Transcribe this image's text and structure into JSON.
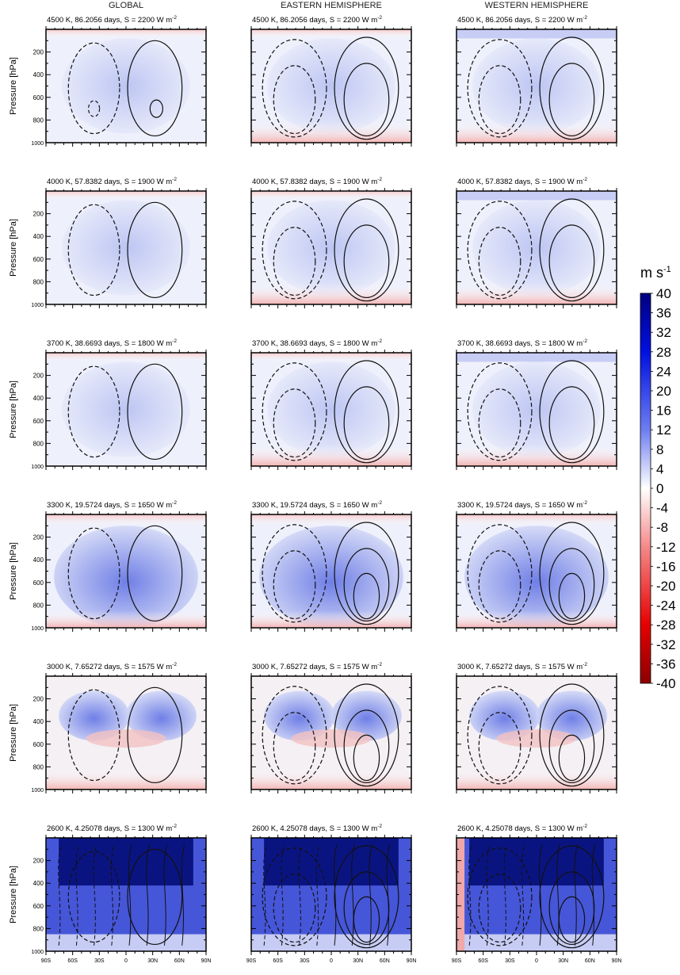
{
  "columns": [
    "GLOBAL",
    "EASTERN HEMISPHERE",
    "WESTERN HEMISPHERE"
  ],
  "ylabel": "Pressure [hPa]",
  "colorbar": {
    "unit": "m s",
    "unit_exp": "-1",
    "labels": [
      "40",
      "36",
      "32",
      "28",
      "24",
      "20",
      "16",
      "12",
      "8",
      "4",
      "0",
      "-4",
      "-8",
      "-12",
      "-16",
      "-20",
      "-24",
      "-28",
      "-32",
      "-36",
      "-40"
    ]
  },
  "y_ticks_first": [
    "200",
    "400",
    "600",
    "800",
    "1000"
  ],
  "y_ticks": [
    "200",
    "400",
    "600",
    "800",
    "1000"
  ],
  "x_ticks": [
    "90S",
    "60S",
    "30S",
    "0",
    "30N",
    "60N",
    "90N"
  ],
  "rows": [
    {
      "title": "4500 K, 86.2056 days, S = 2200 W m",
      "exp": "-2"
    },
    {
      "title": "4000 K, 57.8382 days, S = 1900 W m",
      "exp": "-2"
    },
    {
      "title": "3700 K, 38.6693 days, S = 1800 W m",
      "exp": "-2"
    },
    {
      "title": "3300 K, 19.5724 days, S = 1650 W m",
      "exp": "-2"
    },
    {
      "title": "3000 K, 7.65272 days, S = 1575 W m",
      "exp": "-2"
    },
    {
      "title": "2600 K, 4.25078 days, S = 1300 W m",
      "exp": "-2"
    }
  ],
  "chart_data": {
    "type": "heatmap",
    "description_units": "zonal-mean zonal wind (m s-1) shading with streamfunction contours",
    "x_axis": {
      "label": "",
      "ticks": [
        "90S",
        "60S",
        "30S",
        "0",
        "30N",
        "60N",
        "90N"
      ],
      "range": [
        -90,
        90
      ]
    },
    "y_axis": {
      "label": "Pressure [hPa]",
      "ticks": [
        200,
        400,
        600,
        800,
        1000
      ],
      "range": [
        1000,
        0
      ],
      "reversed": true
    },
    "color_scale": {
      "range": [
        -40,
        40
      ],
      "step": 4,
      "negative_color": "#8b0000",
      "positive_color": "#00007f",
      "zero_color": "#ffffff"
    },
    "panels": [
      {
        "row": 0,
        "column": "GLOBAL"
      },
      {
        "row": 0,
        "column": "EASTERN HEMISPHERE"
      },
      {
        "row": 0,
        "column": "WESTERN HEMISPHERE"
      },
      {
        "row": 1,
        "column": "GLOBAL"
      },
      {
        "row": 1,
        "column": "EASTERN HEMISPHERE"
      },
      {
        "row": 1,
        "column": "WESTERN HEMISPHERE"
      },
      {
        "row": 2,
        "column": "GLOBAL"
      },
      {
        "row": 2,
        "column": "EASTERN HEMISPHERE"
      },
      {
        "row": 2,
        "column": "WESTERN HEMISPHERE"
      },
      {
        "row": 3,
        "column": "GLOBAL"
      },
      {
        "row": 3,
        "column": "EASTERN HEMISPHERE"
      },
      {
        "row": 3,
        "column": "WESTERN HEMISPHERE"
      },
      {
        "row": 4,
        "column": "GLOBAL"
      },
      {
        "row": 4,
        "column": "EASTERN HEMISPHERE"
      },
      {
        "row": 4,
        "column": "WESTERN HEMISPHERE"
      },
      {
        "row": 5,
        "column": "GLOBAL"
      },
      {
        "row": 5,
        "column": "EASTERN HEMISPHERE"
      },
      {
        "row": 5,
        "column": "WESTERN HEMISPHERE"
      }
    ]
  }
}
